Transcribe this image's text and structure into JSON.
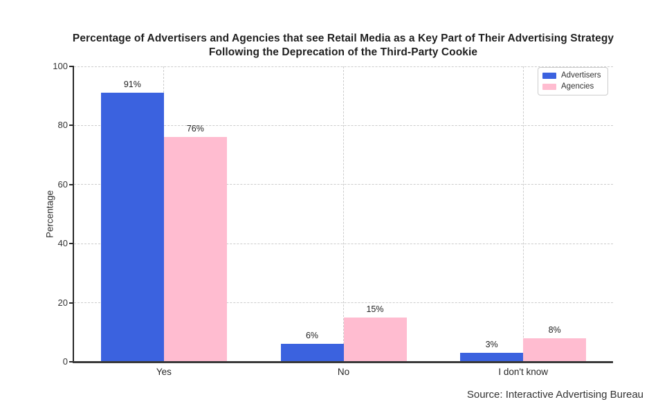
{
  "page": {
    "background": "#ffffff"
  },
  "chart_data": {
    "type": "bar",
    "title": "Percentage of Advertisers and Agencies that see Retail Media as a Key Part of Their Advertising Strategy Following the Deprecation of the Third-Party Cookie",
    "title_lines": [
      "Percentage of Advertisers and Agencies that see Retail Media as a Key Part of Their Advertising Strategy",
      "Following the Deprecation of the Third-Party Cookie"
    ],
    "categories": [
      "Yes",
      "No",
      "I don't know"
    ],
    "series": [
      {
        "name": "Advertisers",
        "color": "#3B62DF",
        "values": [
          91,
          6,
          3
        ],
        "labels": [
          "91%",
          "6%",
          "3%"
        ]
      },
      {
        "name": "Agencies",
        "color": "#FFBCD0",
        "values": [
          76,
          15,
          8
        ],
        "labels": [
          "76%",
          "15%",
          "8%"
        ]
      }
    ],
    "xlabel": "",
    "ylabel": "Percentage",
    "ylim": [
      0,
      100
    ],
    "yticks": [
      0,
      20,
      40,
      60,
      80,
      100
    ],
    "grid": "dashed both axes",
    "legend_position": "upper right",
    "source": "Source: Interactive Advertising Bureau"
  },
  "colors": {
    "advertisers": "#3B62DF",
    "agencies": "#FFBCD0",
    "gridline": "#cccccc",
    "axis_spine": "#333333",
    "title_text": "#1f1f1f",
    "tick_text": "#333333"
  }
}
